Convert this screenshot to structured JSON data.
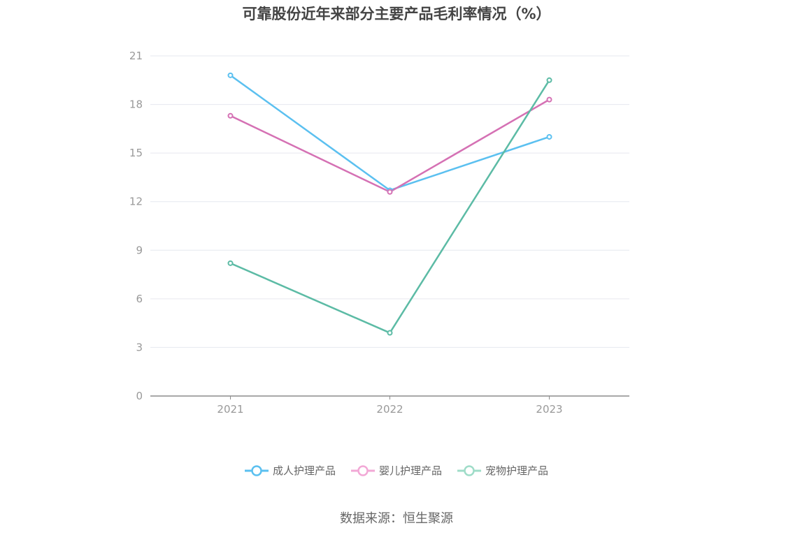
{
  "chart_data": {
    "type": "line",
    "title": "可靠股份近年来部分主要产品毛利率情况（%）",
    "x": [
      "2021",
      "2022",
      "2023"
    ],
    "series": [
      {
        "name": "成人护理产品",
        "color": "#5bc0f0",
        "values": [
          19.8,
          12.7,
          16.0
        ]
      },
      {
        "name": "婴儿护理产品",
        "color": "#d571b4",
        "values": [
          17.3,
          12.6,
          18.3
        ]
      },
      {
        "name": "宠物护理产品",
        "color": "#5cbba5",
        "values": [
          8.2,
          3.9,
          19.5
        ]
      }
    ],
    "ylim": [
      0,
      21
    ],
    "yticks": [
      0,
      3,
      6,
      9,
      12,
      15,
      18,
      21
    ],
    "grid": true,
    "legend": "bottom",
    "xlabel": "",
    "ylabel": ""
  },
  "source": "数据来源：恒生聚源"
}
